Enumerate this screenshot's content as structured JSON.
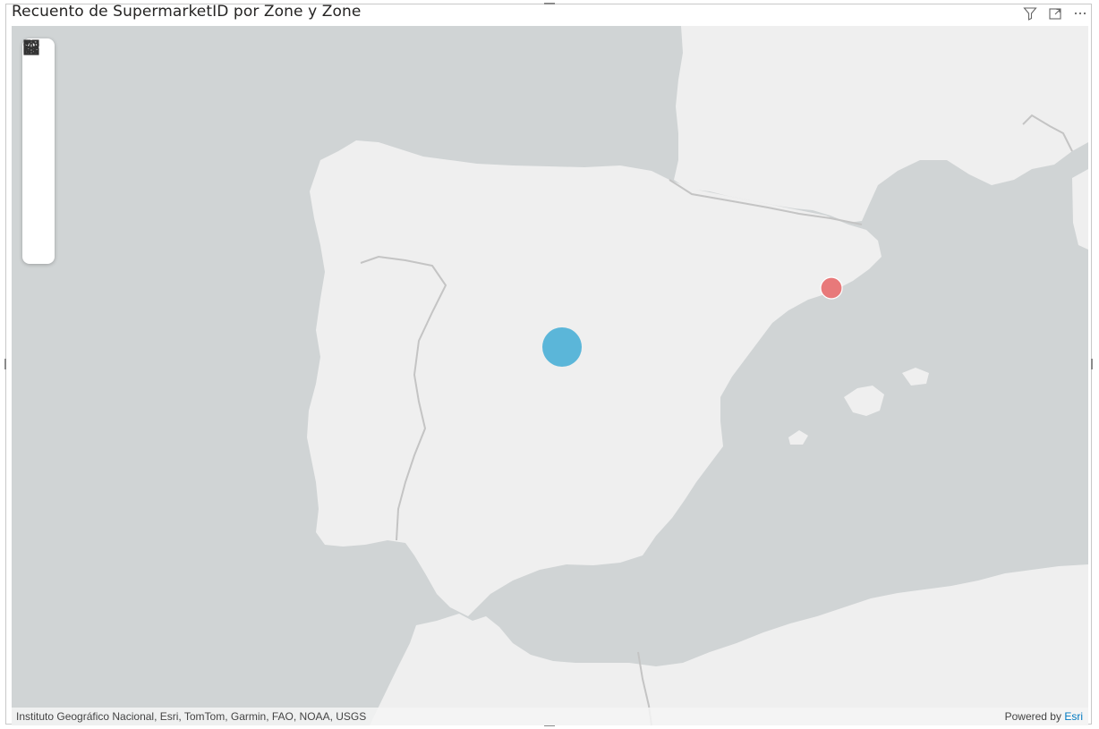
{
  "visual": {
    "title": "Recuento de SupermarketID por Zone y Zone",
    "header_icons": [
      "filter-icon",
      "focus-mode-icon",
      "more-options-icon"
    ]
  },
  "map": {
    "region": "Iberian Peninsula",
    "toolbar": [
      "menu-icon",
      "layers-icon",
      "reference-layer-icon",
      "select-icon",
      "search-icon",
      "infographic-icon",
      "pin-icon"
    ],
    "bubbles": [
      {
        "id": "bubble-blue",
        "color": "#5bb6d9"
      },
      {
        "id": "bubble-red",
        "color": "#e8797a"
      }
    ],
    "colors": {
      "land": "#efefef",
      "water": "#d0d4d5",
      "border": "#c4c4c4"
    }
  },
  "attribution": {
    "sources": "Instituto Geográfico Nacional, Esri, TomTom, Garmin, FAO, NOAA, USGS",
    "powered_by": "Powered by",
    "esri_link": "Esri"
  }
}
